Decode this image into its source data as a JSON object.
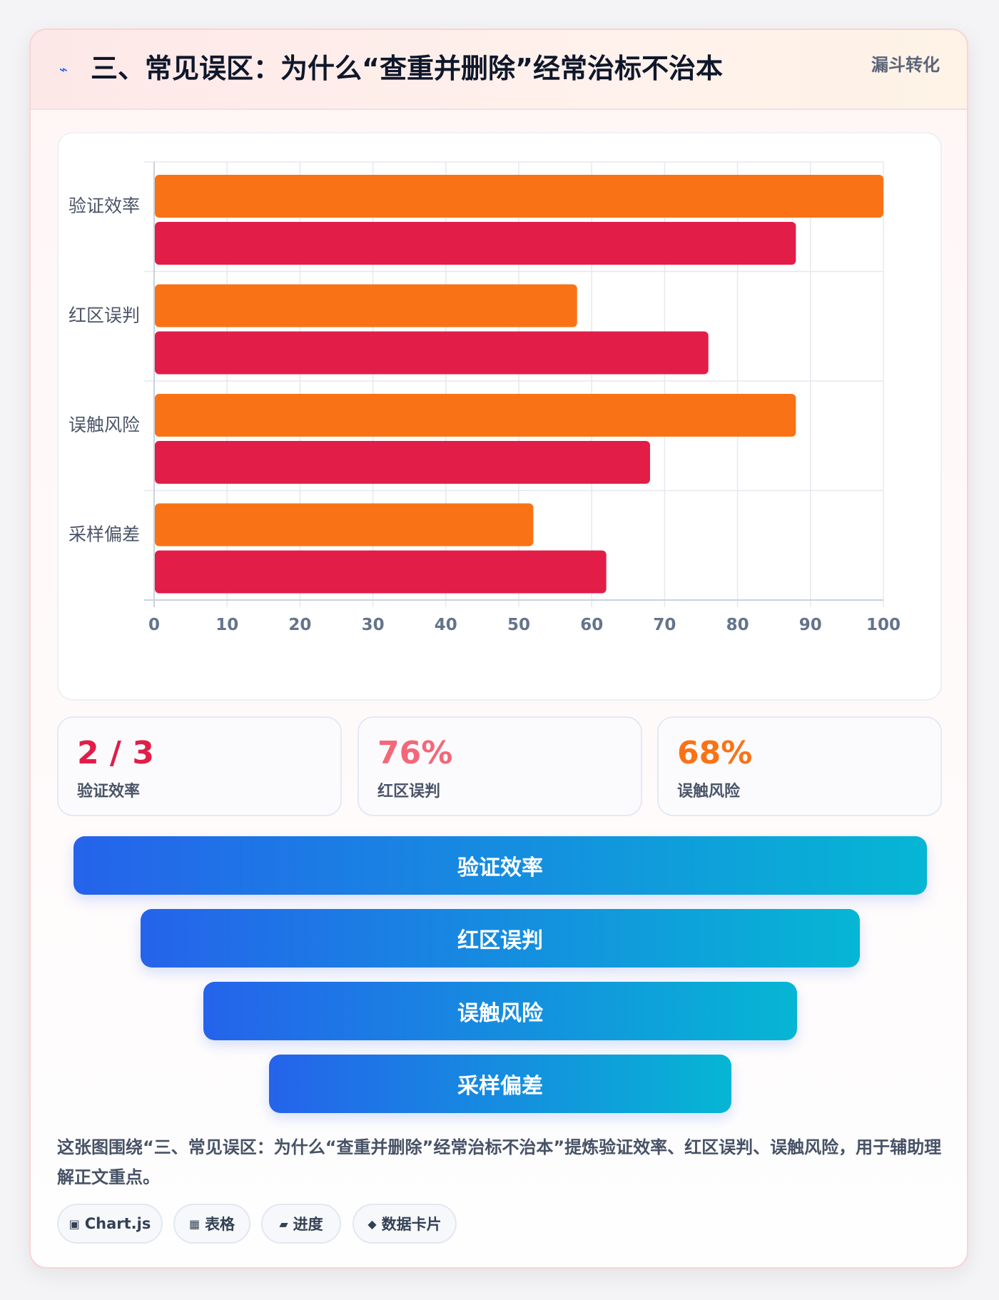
{
  "header": {
    "icon": "flash-icon",
    "title": "三、常见误区：为什么“查重并删除”经常治标不治本",
    "tag": "漏斗转化"
  },
  "chart_data": {
    "type": "bar",
    "orientation": "horizontal",
    "categories": [
      "验证效率",
      "红区误判",
      "误触风险",
      "采样偏差"
    ],
    "series": [
      {
        "values": [
          100,
          58,
          88,
          52
        ],
        "color": "#f97316"
      },
      {
        "values": [
          88,
          76,
          68,
          62
        ],
        "color": "#e11d48"
      }
    ],
    "xlim": [
      0,
      100
    ],
    "xticks": [
      "0",
      "10",
      "20",
      "30",
      "40",
      "50",
      "60",
      "70",
      "80",
      "90",
      "100"
    ],
    "grid": true,
    "legend": false
  },
  "stats": [
    {
      "value": "2 / 3",
      "label": "验证效率",
      "color": "#e11d48"
    },
    {
      "value": "76%",
      "label": "红区误判",
      "color": "#f46779"
    },
    {
      "value": "68%",
      "label": "误触风险",
      "color": "#f97316"
    }
  ],
  "funnel": [
    {
      "label": "验证效率"
    },
    {
      "label": "红区误判"
    },
    {
      "label": "误触风险"
    },
    {
      "label": "采样偏差"
    }
  ],
  "caption": "这张图围绕“三、常见误区：为什么“查重并删除”经常治标不治本”提炼验证效率、红区误判、误触风险，用于辅助理解正文重点。",
  "chips": [
    {
      "icon": "▣",
      "label": "Chart.js"
    },
    {
      "icon": "▦",
      "label": "表格"
    },
    {
      "icon": "▰",
      "label": "进度"
    },
    {
      "icon": "◆",
      "label": "数据卡片"
    }
  ]
}
